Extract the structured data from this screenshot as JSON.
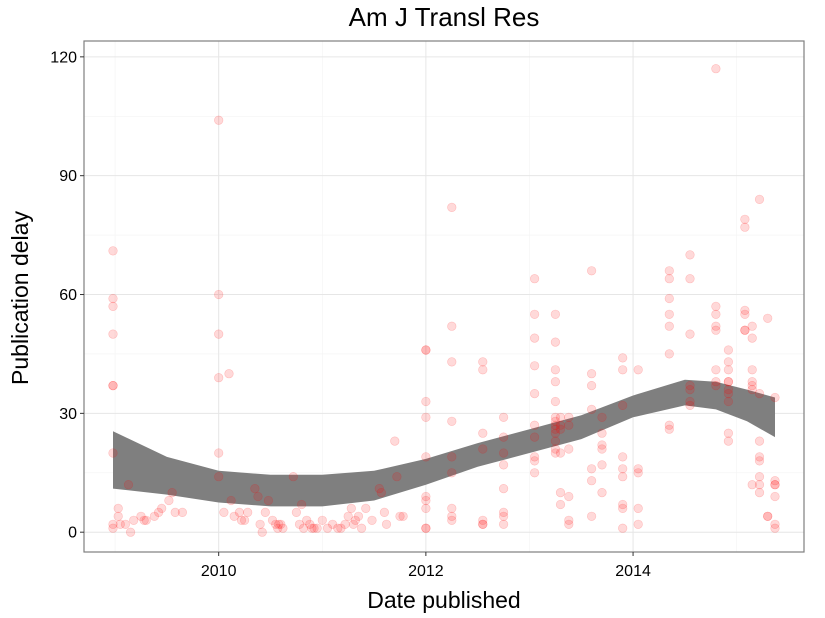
{
  "chart_data": {
    "type": "scatter",
    "title": "Am J Transl Res",
    "xlabel": "Date published",
    "ylabel": "Publication delay",
    "xlim": [
      2008.7,
      2015.65
    ],
    "ylim": [
      -5,
      124
    ],
    "x_ticks": [
      2010,
      2012,
      2014
    ],
    "x_tick_labels": [
      "2010",
      "2012",
      "2014"
    ],
    "y_ticks": [
      0,
      30,
      60,
      90,
      120
    ],
    "y_tick_labels": [
      "0",
      "30",
      "60",
      "90",
      "120"
    ],
    "grid": true,
    "point_color": "#ff0000",
    "point_opacity": 0.15,
    "smooth_band_color": "#7f7f7f",
    "points": [
      [
        2008.98,
        71
      ],
      [
        2008.98,
        59
      ],
      [
        2008.98,
        57
      ],
      [
        2008.98,
        50
      ],
      [
        2008.98,
        37
      ],
      [
        2008.98,
        37
      ],
      [
        2008.98,
        20
      ],
      [
        2008.98,
        2
      ],
      [
        2008.98,
        1
      ],
      [
        2009.03,
        6
      ],
      [
        2009.03,
        4
      ],
      [
        2009.05,
        2
      ],
      [
        2009.1,
        2
      ],
      [
        2009.13,
        12
      ],
      [
        2009.15,
        0
      ],
      [
        2009.18,
        3
      ],
      [
        2009.25,
        4
      ],
      [
        2009.28,
        3
      ],
      [
        2009.3,
        3
      ],
      [
        2009.38,
        4
      ],
      [
        2009.42,
        5
      ],
      [
        2009.45,
        6
      ],
      [
        2009.52,
        8
      ],
      [
        2009.55,
        10
      ],
      [
        2009.58,
        5
      ],
      [
        2009.65,
        5
      ],
      [
        2010.0,
        104
      ],
      [
        2010.0,
        60
      ],
      [
        2010.0,
        50
      ],
      [
        2010.0,
        39
      ],
      [
        2010.0,
        20
      ],
      [
        2010.0,
        14
      ],
      [
        2010.05,
        5
      ],
      [
        2010.1,
        40
      ],
      [
        2010.12,
        8
      ],
      [
        2010.15,
        4
      ],
      [
        2010.2,
        5
      ],
      [
        2010.22,
        3
      ],
      [
        2010.25,
        3
      ],
      [
        2010.28,
        5
      ],
      [
        2010.35,
        11
      ],
      [
        2010.38,
        9
      ],
      [
        2010.4,
        2
      ],
      [
        2010.42,
        0
      ],
      [
        2010.45,
        5
      ],
      [
        2010.48,
        8
      ],
      [
        2010.52,
        3
      ],
      [
        2010.55,
        2
      ],
      [
        2010.57,
        1
      ],
      [
        2010.58,
        2
      ],
      [
        2010.6,
        2
      ],
      [
        2010.62,
        1
      ],
      [
        2010.72,
        14
      ],
      [
        2010.75,
        5
      ],
      [
        2010.78,
        2
      ],
      [
        2010.8,
        7
      ],
      [
        2010.82,
        1
      ],
      [
        2010.85,
        3
      ],
      [
        2010.88,
        2
      ],
      [
        2010.9,
        1
      ],
      [
        2010.92,
        1
      ],
      [
        2010.95,
        1
      ],
      [
        2011.0,
        3
      ],
      [
        2011.05,
        1
      ],
      [
        2011.1,
        2
      ],
      [
        2011.15,
        1
      ],
      [
        2011.18,
        1
      ],
      [
        2011.22,
        2
      ],
      [
        2011.25,
        4
      ],
      [
        2011.28,
        6
      ],
      [
        2011.3,
        2
      ],
      [
        2011.32,
        3
      ],
      [
        2011.35,
        4
      ],
      [
        2011.38,
        1
      ],
      [
        2011.42,
        6
      ],
      [
        2011.48,
        3
      ],
      [
        2011.55,
        11
      ],
      [
        2011.57,
        10
      ],
      [
        2011.6,
        5
      ],
      [
        2011.62,
        2
      ],
      [
        2011.7,
        23
      ],
      [
        2011.72,
        14
      ],
      [
        2011.75,
        4
      ],
      [
        2011.78,
        4
      ],
      [
        2012.0,
        46
      ],
      [
        2012.0,
        46
      ],
      [
        2012.0,
        33
      ],
      [
        2012.0,
        29
      ],
      [
        2012.0,
        19
      ],
      [
        2012.0,
        9
      ],
      [
        2012.0,
        8
      ],
      [
        2012.0,
        6
      ],
      [
        2012.0,
        1
      ],
      [
        2012.0,
        1
      ],
      [
        2012.25,
        82
      ],
      [
        2012.25,
        52
      ],
      [
        2012.25,
        43
      ],
      [
        2012.25,
        28
      ],
      [
        2012.25,
        19
      ],
      [
        2012.25,
        15
      ],
      [
        2012.25,
        6
      ],
      [
        2012.25,
        4
      ],
      [
        2012.25,
        3
      ],
      [
        2012.55,
        43
      ],
      [
        2012.55,
        41
      ],
      [
        2012.55,
        25
      ],
      [
        2012.55,
        21
      ],
      [
        2012.55,
        3
      ],
      [
        2012.55,
        2
      ],
      [
        2012.55,
        2
      ],
      [
        2012.75,
        29
      ],
      [
        2012.75,
        24
      ],
      [
        2012.75,
        20
      ],
      [
        2012.75,
        17
      ],
      [
        2012.75,
        11
      ],
      [
        2012.75,
        5
      ],
      [
        2012.75,
        4
      ],
      [
        2012.75,
        2
      ],
      [
        2013.05,
        64
      ],
      [
        2013.05,
        55
      ],
      [
        2013.05,
        49
      ],
      [
        2013.05,
        42
      ],
      [
        2013.05,
        35
      ],
      [
        2013.05,
        27
      ],
      [
        2013.05,
        24
      ],
      [
        2013.05,
        19
      ],
      [
        2013.05,
        18
      ],
      [
        2013.05,
        15
      ],
      [
        2013.25,
        55
      ],
      [
        2013.25,
        48
      ],
      [
        2013.25,
        41
      ],
      [
        2013.25,
        38
      ],
      [
        2013.25,
        33
      ],
      [
        2013.25,
        29
      ],
      [
        2013.25,
        28
      ],
      [
        2013.25,
        27
      ],
      [
        2013.25,
        26
      ],
      [
        2013.25,
        25
      ],
      [
        2013.25,
        23
      ],
      [
        2013.25,
        21
      ],
      [
        2013.25,
        20
      ],
      [
        2013.3,
        29
      ],
      [
        2013.3,
        27
      ],
      [
        2013.3,
        26
      ],
      [
        2013.3,
        20
      ],
      [
        2013.3,
        10
      ],
      [
        2013.3,
        7
      ],
      [
        2013.38,
        29
      ],
      [
        2013.38,
        27
      ],
      [
        2013.38,
        21
      ],
      [
        2013.38,
        9
      ],
      [
        2013.38,
        3
      ],
      [
        2013.38,
        2
      ],
      [
        2013.6,
        66
      ],
      [
        2013.6,
        40
      ],
      [
        2013.6,
        37
      ],
      [
        2013.6,
        31
      ],
      [
        2013.6,
        16
      ],
      [
        2013.6,
        13
      ],
      [
        2013.6,
        4
      ],
      [
        2013.7,
        29
      ],
      [
        2013.7,
        25
      ],
      [
        2013.7,
        22
      ],
      [
        2013.7,
        21
      ],
      [
        2013.7,
        17
      ],
      [
        2013.7,
        10
      ],
      [
        2013.9,
        44
      ],
      [
        2013.9,
        41
      ],
      [
        2013.9,
        32
      ],
      [
        2013.9,
        19
      ],
      [
        2013.9,
        16
      ],
      [
        2013.9,
        14
      ],
      [
        2013.9,
        7
      ],
      [
        2013.9,
        6
      ],
      [
        2013.9,
        1
      ],
      [
        2014.05,
        41
      ],
      [
        2014.05,
        16
      ],
      [
        2014.05,
        15
      ],
      [
        2014.05,
        6
      ],
      [
        2014.05,
        2
      ],
      [
        2014.35,
        66
      ],
      [
        2014.35,
        64
      ],
      [
        2014.35,
        59
      ],
      [
        2014.35,
        55
      ],
      [
        2014.35,
        52
      ],
      [
        2014.35,
        45
      ],
      [
        2014.35,
        27
      ],
      [
        2014.35,
        26
      ],
      [
        2014.55,
        70
      ],
      [
        2014.55,
        64
      ],
      [
        2014.55,
        50
      ],
      [
        2014.55,
        37
      ],
      [
        2014.55,
        36
      ],
      [
        2014.55,
        33
      ],
      [
        2014.55,
        32
      ],
      [
        2014.8,
        117
      ],
      [
        2014.8,
        57
      ],
      [
        2014.8,
        55
      ],
      [
        2014.8,
        52
      ],
      [
        2014.8,
        51
      ],
      [
        2014.8,
        41
      ],
      [
        2014.8,
        38
      ],
      [
        2014.8,
        37
      ],
      [
        2014.92,
        46
      ],
      [
        2014.92,
        43
      ],
      [
        2014.92,
        41
      ],
      [
        2014.92,
        38
      ],
      [
        2014.92,
        38
      ],
      [
        2014.92,
        36
      ],
      [
        2014.92,
        35
      ],
      [
        2014.92,
        33
      ],
      [
        2014.92,
        25
      ],
      [
        2014.92,
        23
      ],
      [
        2015.08,
        79
      ],
      [
        2015.08,
        77
      ],
      [
        2015.08,
        56
      ],
      [
        2015.08,
        55
      ],
      [
        2015.08,
        51
      ],
      [
        2015.08,
        51
      ],
      [
        2015.15,
        52
      ],
      [
        2015.15,
        49
      ],
      [
        2015.15,
        41
      ],
      [
        2015.15,
        38
      ],
      [
        2015.15,
        37
      ],
      [
        2015.15,
        36
      ],
      [
        2015.15,
        12
      ],
      [
        2015.22,
        84
      ],
      [
        2015.22,
        35
      ],
      [
        2015.22,
        23
      ],
      [
        2015.22,
        19
      ],
      [
        2015.22,
        18
      ],
      [
        2015.22,
        14
      ],
      [
        2015.22,
        12
      ],
      [
        2015.22,
        10
      ],
      [
        2015.3,
        54
      ],
      [
        2015.3,
        4
      ],
      [
        2015.3,
        4
      ],
      [
        2015.37,
        34
      ],
      [
        2015.37,
        13
      ],
      [
        2015.37,
        12
      ],
      [
        2015.37,
        12
      ],
      [
        2015.37,
        9
      ],
      [
        2015.37,
        2
      ],
      [
        2015.37,
        1
      ]
    ],
    "smooth_x": [
      2008.98,
      2009.5,
      2010.0,
      2010.5,
      2011.0,
      2011.5,
      2012.0,
      2012.5,
      2013.0,
      2013.5,
      2014.0,
      2014.5,
      2014.8,
      2015.1,
      2015.37
    ],
    "smooth_upper": [
      25.5,
      19,
      15.5,
      14.5,
      14.5,
      15.5,
      18.5,
      22.5,
      26,
      29.5,
      34.5,
      38.5,
      38,
      36,
      34
    ],
    "smooth_lower": [
      11,
      9.5,
      7.5,
      6.5,
      6.5,
      8,
      12,
      16.5,
      20,
      23.5,
      29,
      32,
      31,
      28,
      24
    ]
  }
}
